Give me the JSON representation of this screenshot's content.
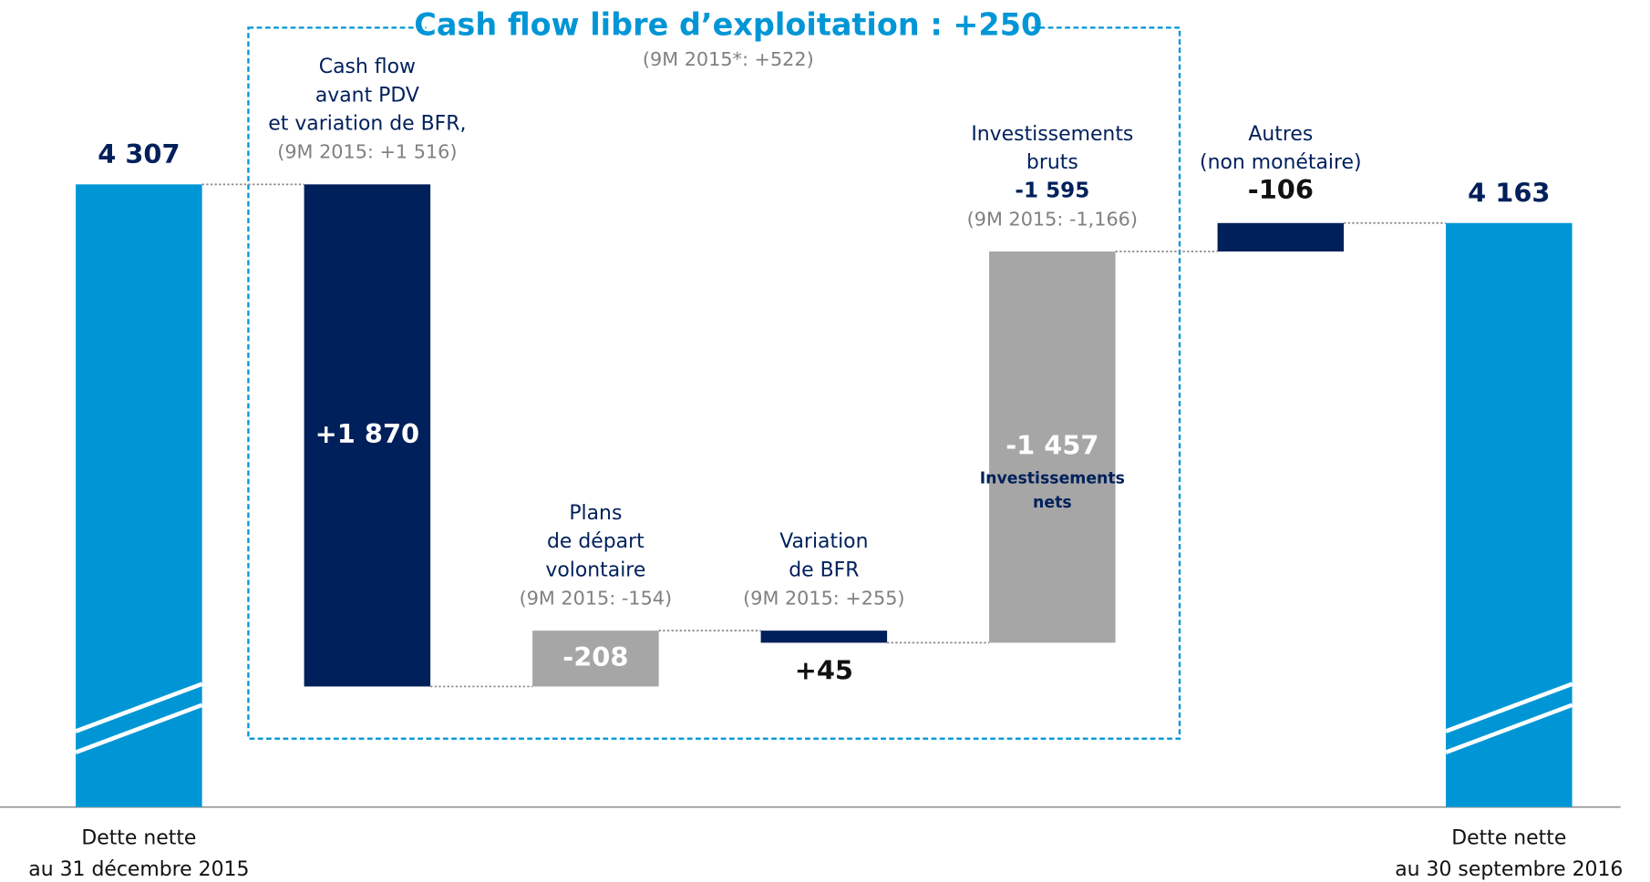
{
  "chart_data": {
    "type": "waterfall",
    "title": "Cash flow libre d’exploitation : +250",
    "subtitle": "(9M 2015*: +522)",
    "start": {
      "label_lines": [
        "Dette nette",
        "au 31 décembre 2015"
      ],
      "value": 4307,
      "value_label": "4 307",
      "color": "#0096d6"
    },
    "end": {
      "label_lines": [
        "Dette nette",
        "au 30 septembre 2016"
      ],
      "value": 4163,
      "value_label": "4 163",
      "color": "#0096d6"
    },
    "steps": [
      {
        "name_lines": [
          "Cash flow",
          "avant PDV",
          "et variation de BFR,"
        ],
        "comparison": "(9M 2015: +1 516)",
        "value": 1870,
        "value_label": "+1 870",
        "color": "#00205b"
      },
      {
        "name_lines": [
          "Plans",
          "de départ",
          "volontaire"
        ],
        "comparison": "(9M 2015: -154)",
        "value": -208,
        "value_label": "-208",
        "color": "#a6a6a6"
      },
      {
        "name_lines": [
          "Variation",
          "de BFR"
        ],
        "comparison": "(9M 2015: +255)",
        "value": 45,
        "value_label": "+45",
        "color": "#00205b"
      },
      {
        "name_lines": [
          "Investissements",
          "bruts"
        ],
        "gross_value": -1595,
        "gross_label": "-1 595",
        "comparison": "(9M 2015: -1,166)",
        "value": -1457,
        "value_label": "-1 457",
        "note_lines": [
          "Investissements",
          "nets"
        ],
        "color": "#a6a6a6"
      },
      {
        "name_lines": [
          "Autres",
          "(non monétaire)"
        ],
        "value": -106,
        "value_label": "-106",
        "color": "#00205b"
      }
    ]
  }
}
